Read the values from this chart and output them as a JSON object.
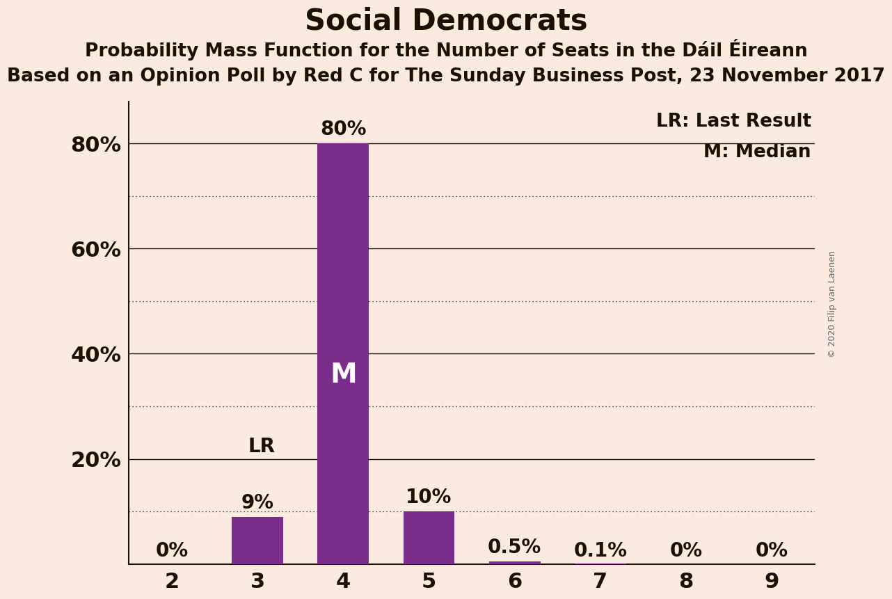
{
  "title": "Social Democrats",
  "subtitle1": "Probability Mass Function for the Number of Seats in the Dáil Éireann",
  "subtitle2": "Based on an Opinion Poll by Red C for The Sunday Business Post, 23 November 2017",
  "copyright": "© 2020 Filip van Laenen",
  "categories": [
    2,
    3,
    4,
    5,
    6,
    7,
    8,
    9
  ],
  "values": [
    0.0,
    0.09,
    0.8,
    0.1,
    0.005,
    0.001,
    0.0,
    0.0
  ],
  "bar_labels": [
    "0%",
    "9%",
    "80%",
    "10%",
    "0.5%",
    "0.1%",
    "0%",
    "0%"
  ],
  "bar_color": "#7b2d8b",
  "background_color": "#faeae0",
  "ylim": [
    0,
    0.88
  ],
  "yticks": [
    0.2,
    0.4,
    0.6,
    0.8
  ],
  "ytick_labels": [
    "20%",
    "40%",
    "60%",
    "80%"
  ],
  "solid_lines": [
    0.2,
    0.4,
    0.6,
    0.8
  ],
  "dotted_lines": [
    0.1,
    0.3,
    0.5,
    0.7
  ],
  "median_seat": 4,
  "last_result_seat": 3,
  "lr_label": "LR",
  "m_label": "M",
  "legend_lr": "LR: Last Result",
  "legend_m": "M: Median",
  "title_fontsize": 30,
  "subtitle1_fontsize": 19,
  "subtitle2_fontsize": 19,
  "axis_tick_fontsize": 22,
  "bar_label_fontsize": 20,
  "annotation_fontsize": 20,
  "legend_fontsize": 19,
  "copyright_fontsize": 9,
  "m_fontsize": 28
}
